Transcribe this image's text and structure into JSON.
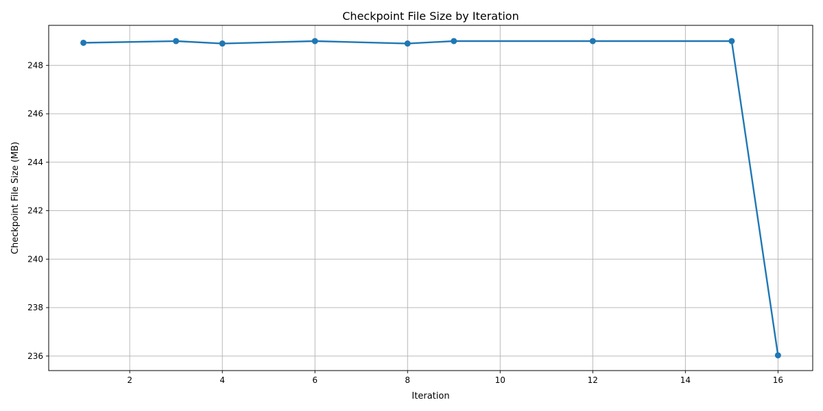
{
  "chart_data": {
    "type": "line",
    "title": "Checkpoint File Size by Iteration",
    "xlabel": "Iteration",
    "ylabel": "Checkpoint File Size (MB)",
    "xlim": [
      0.25,
      16.75
    ],
    "ylim": [
      235.4,
      249.65
    ],
    "xticks": [
      2,
      4,
      6,
      8,
      10,
      12,
      14,
      16
    ],
    "yticks": [
      236,
      238,
      240,
      242,
      244,
      246,
      248
    ],
    "grid": true,
    "series": [
      {
        "color": "#1f77b4",
        "marker": "circle",
        "x": [
          1,
          3,
          4,
          6,
          8,
          9,
          12,
          15,
          16
        ],
        "y": [
          248.93,
          249.0,
          248.9,
          249.0,
          248.9,
          249.0,
          249.0,
          249.0,
          236.03
        ]
      }
    ]
  }
}
